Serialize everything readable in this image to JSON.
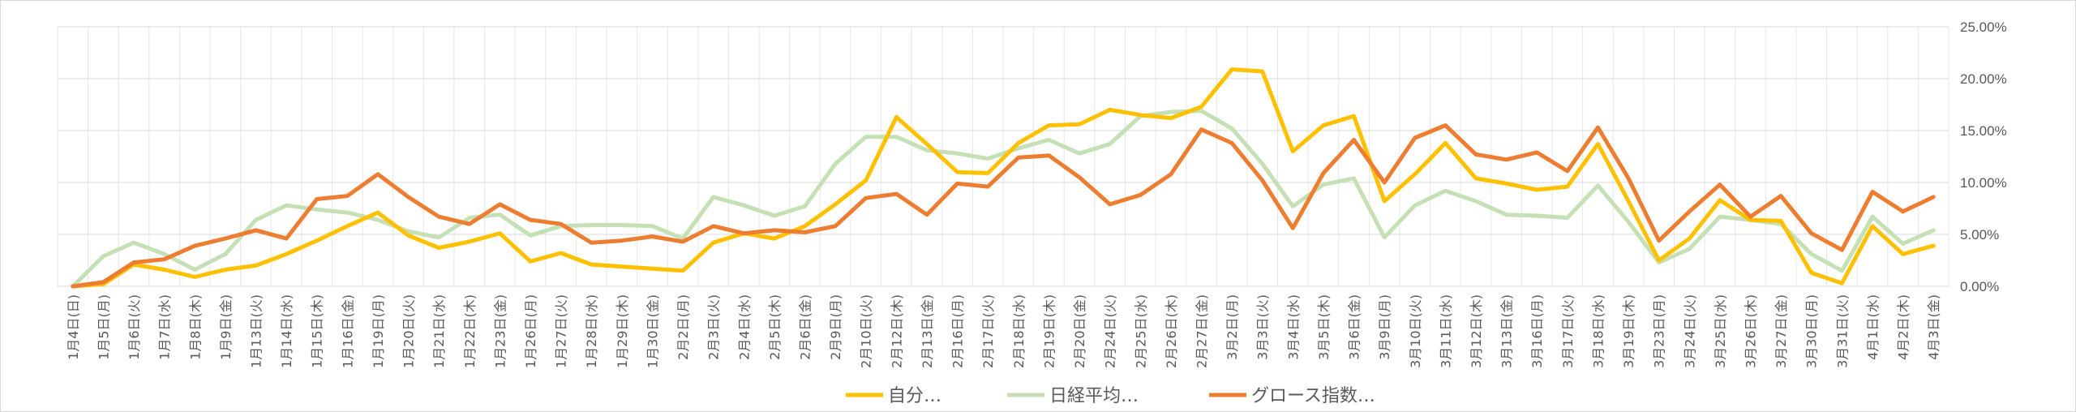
{
  "chart_data": {
    "type": "line",
    "ylim": [
      0,
      25
    ],
    "y_ticks": [
      0,
      5,
      10,
      15,
      20,
      25
    ],
    "y_tick_labels": [
      "0.00%",
      "5.00%",
      "10.00%",
      "15.00%",
      "20.00%",
      "25.00%"
    ],
    "y_axis_position": "right",
    "grid": true,
    "legend_position": "bottom",
    "categories": [
      "1月4日(日)",
      "1月5日(月)",
      "1月6日(火)",
      "1月7日(水)",
      "1月8日(木)",
      "1月9日(金)",
      "1月13日(火)",
      "1月14日(水)",
      "1月15日(木)",
      "1月16日(金)",
      "1月19日(月)",
      "1月20日(火)",
      "1月21日(水)",
      "1月22日(木)",
      "1月23日(金)",
      "1月26日(月)",
      "1月27日(火)",
      "1月28日(水)",
      "1月29日(木)",
      "1月30日(金)",
      "2月2日(月)",
      "2月3日(火)",
      "2月4日(水)",
      "2月5日(木)",
      "2月6日(金)",
      "2月9日(月)",
      "2月10日(火)",
      "2月12日(木)",
      "2月13日(金)",
      "2月16日(月)",
      "2月17日(火)",
      "2月18日(水)",
      "2月19日(木)",
      "2月20日(金)",
      "2月24日(火)",
      "2月25日(水)",
      "2月26日(木)",
      "2月27日(金)",
      "3月2日(月)",
      "3月3日(火)",
      "3月4日(水)",
      "3月5日(木)",
      "3月6日(金)",
      "3月9日(月)",
      "3月10日(火)",
      "3月11日(水)",
      "3月12日(木)",
      "3月13日(金)",
      "3月16日(月)",
      "3月17日(火)",
      "3月18日(水)",
      "3月19日(木)",
      "3月23日(月)",
      "3月24日(火)",
      "3月25日(水)",
      "3月26日(木)",
      "3月27日(金)",
      "3月30日(月)",
      "3月31日(火)",
      "4月1日(水)",
      "4月2日(木)",
      "4月3日(金)"
    ],
    "series": [
      {
        "name": "自分…",
        "color": "#FFC000",
        "values": [
          0,
          0.2,
          2.1,
          1.6,
          0.9,
          1.6,
          2.0,
          3.1,
          4.4,
          5.8,
          7.1,
          4.9,
          3.7,
          4.3,
          5.1,
          2.4,
          3.2,
          2.1,
          1.9,
          1.7,
          1.5,
          4.2,
          5.1,
          4.6,
          5.8,
          7.9,
          10.2,
          16.3,
          13.7,
          11.0,
          10.9,
          13.8,
          15.5,
          15.6,
          17.0,
          16.5,
          16.2,
          17.3,
          20.9,
          20.7,
          13.0,
          15.5,
          16.4,
          8.2,
          10.8,
          13.8,
          10.4,
          9.9,
          9.3,
          9.6,
          13.7,
          8.2,
          2.5,
          4.6,
          8.3,
          6.4,
          6.3,
          1.3,
          0.3,
          5.8,
          3.1,
          3.9
        ]
      },
      {
        "name": "日経平均…",
        "color": "#C5E0B4",
        "values": [
          0,
          2.9,
          4.2,
          3.1,
          1.6,
          3.1,
          6.4,
          7.8,
          7.4,
          7.1,
          6.4,
          5.3,
          4.7,
          6.6,
          6.9,
          4.9,
          5.8,
          5.9,
          5.9,
          5.8,
          4.6,
          8.6,
          7.8,
          6.8,
          7.7,
          11.8,
          14.4,
          14.4,
          13.1,
          12.8,
          12.3,
          13.3,
          14.1,
          12.8,
          13.7,
          16.4,
          16.8,
          16.9,
          15.2,
          11.8,
          7.7,
          9.8,
          10.4,
          4.7,
          7.8,
          9.2,
          8.2,
          6.9,
          6.8,
          6.6,
          9.7,
          6.2,
          2.3,
          3.6,
          6.7,
          6.4,
          6.0,
          3.1,
          1.5,
          6.7,
          4.1,
          5.4
        ]
      },
      {
        "name": "グロース指数…",
        "color": "#ED7D31",
        "values": [
          0,
          0.4,
          2.3,
          2.6,
          3.9,
          4.6,
          5.4,
          4.6,
          8.4,
          8.7,
          10.8,
          8.6,
          6.7,
          6.0,
          7.9,
          6.4,
          6.0,
          4.2,
          4.4,
          4.8,
          4.3,
          5.8,
          5.1,
          5.4,
          5.2,
          5.8,
          8.5,
          8.9,
          6.9,
          9.9,
          9.6,
          12.4,
          12.6,
          10.5,
          7.9,
          8.8,
          10.8,
          15.1,
          13.8,
          10.2,
          5.6,
          10.9,
          14.1,
          10.0,
          14.3,
          15.5,
          12.7,
          12.2,
          12.9,
          11.1,
          15.3,
          10.4,
          4.4,
          7.2,
          9.8,
          6.7,
          8.7,
          5.1,
          3.5,
          9.1,
          7.2,
          8.6
        ]
      }
    ]
  }
}
